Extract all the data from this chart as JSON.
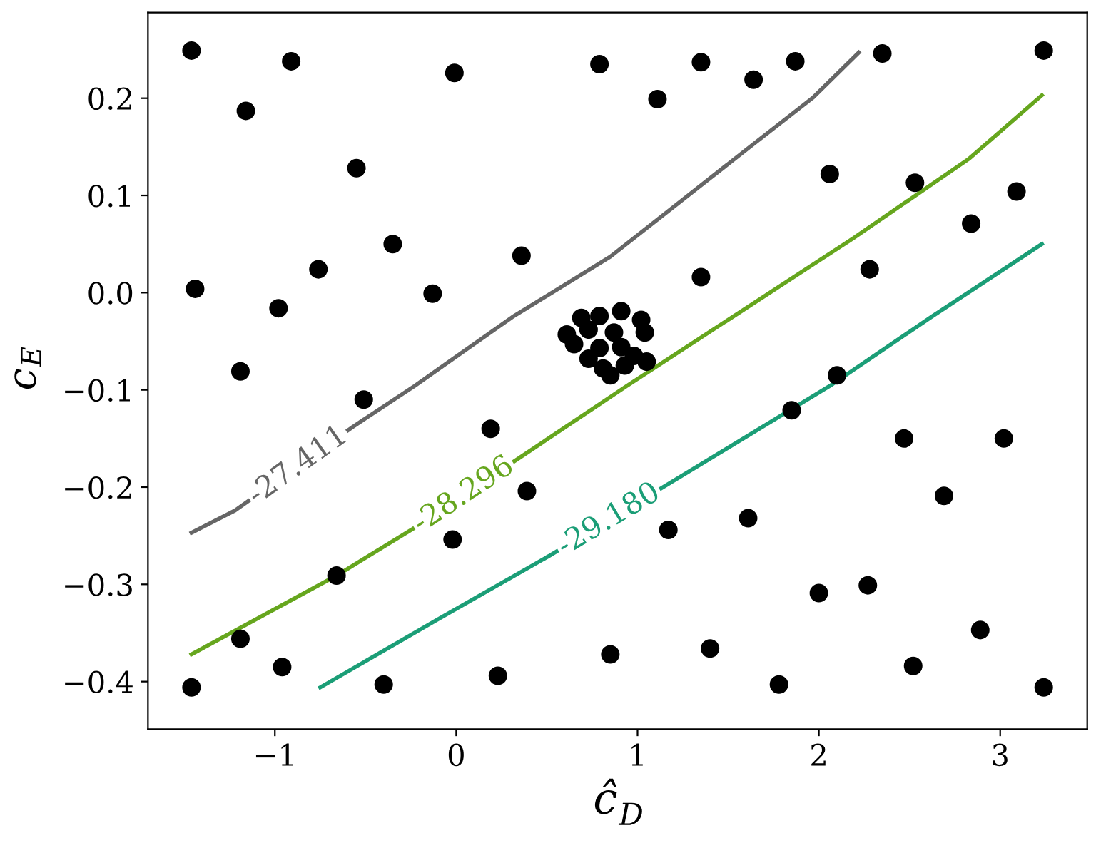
{
  "chart_data": {
    "type": "scatter",
    "xlabel": "ĉ$_{D}$",
    "ylabel": "c$_{E}$",
    "xlim": [
      -1.7,
      3.48
    ],
    "ylim": [
      -0.449,
      0.288
    ],
    "xticks": [
      -1,
      0,
      1,
      2,
      3
    ],
    "yticks": [
      -0.4,
      -0.3,
      -0.2,
      -0.1,
      {
        "value": 0,
        "label": "0.0"
      },
      0.1,
      0.2
    ],
    "grid": false,
    "legend": false,
    "marker": "circle",
    "series": [
      {
        "color": "#000000",
        "x": [
          -1.46,
          -0.91,
          -0.01,
          0.79,
          1.35,
          1.87,
          2.35,
          3.24,
          -1.16,
          1.11,
          1.64,
          -0.55,
          2.06,
          2.53,
          3.09,
          2.84,
          -0.35,
          0.36,
          -1.44,
          -0.76,
          -0.98,
          -0.13,
          1.35,
          2.28,
          -1.19,
          -0.51,
          2.1,
          0.19,
          1.85,
          0.39,
          2.47,
          3.02,
          1.17,
          1.61,
          2.69,
          -0.02,
          -0.66,
          2.0,
          2.27,
          -1.19,
          2.89,
          -0.96,
          0.85,
          1.4,
          2.52,
          -1.46,
          -0.4,
          0.23,
          1.78,
          3.24,
          0.69,
          0.79,
          0.91,
          1.02,
          0.61,
          0.73,
          0.87,
          1.04,
          0.65,
          0.79,
          0.91,
          0.98,
          0.81,
          0.93,
          1.05,
          0.73,
          0.85
        ],
        "values": [
          0.249,
          0.238,
          0.226,
          0.235,
          0.237,
          0.238,
          0.246,
          0.249,
          0.187,
          0.199,
          0.219,
          0.128,
          0.122,
          0.113,
          0.104,
          0.071,
          0.05,
          0.038,
          0.004,
          0.024,
          -0.016,
          -0.001,
          0.016,
          0.024,
          -0.081,
          -0.11,
          -0.085,
          -0.14,
          -0.121,
          -0.204,
          -0.15,
          -0.15,
          -0.244,
          -0.232,
          -0.209,
          -0.254,
          -0.291,
          -0.309,
          -0.301,
          -0.356,
          -0.347,
          -0.385,
          -0.372,
          -0.366,
          -0.384,
          -0.406,
          -0.403,
          -0.394,
          -0.403,
          -0.406,
          -0.026,
          -0.024,
          -0.019,
          -0.028,
          -0.043,
          -0.038,
          -0.041,
          -0.041,
          -0.053,
          -0.057,
          -0.056,
          -0.065,
          -0.078,
          -0.075,
          -0.071,
          -0.068,
          -0.085
        ]
      },
      {
        "type": "line",
        "name": "-27.411",
        "color": "#666666",
        "marker": "none",
        "x": [
          -1.46,
          -1.22,
          -0.57,
          -0.23,
          0.31,
          0.85,
          1.62,
          1.97,
          2.22
        ],
        "values": [
          -0.247,
          -0.224,
          -0.138,
          -0.096,
          -0.025,
          0.037,
          0.15,
          0.201,
          0.247
        ]
      },
      {
        "type": "line",
        "name": "-28.296",
        "color": "#66a61e",
        "marker": "none",
        "x": [
          -1.46,
          -0.66,
          -0.24,
          0.38,
          0.94,
          2.19,
          2.83,
          3.23
        ],
        "values": [
          -0.372,
          -0.291,
          -0.243,
          -0.166,
          -0.096,
          0.056,
          0.138,
          0.203
        ]
      },
      {
        "type": "line",
        "name": "-29.180",
        "color": "#1b9e77",
        "marker": "none",
        "x": [
          -0.75,
          -0.12,
          0.51,
          1.15,
          2.06,
          2.62,
          3.23
        ],
        "values": [
          -0.406,
          -0.338,
          -0.271,
          -0.199,
          -0.096,
          -0.025,
          0.05
        ]
      }
    ]
  }
}
